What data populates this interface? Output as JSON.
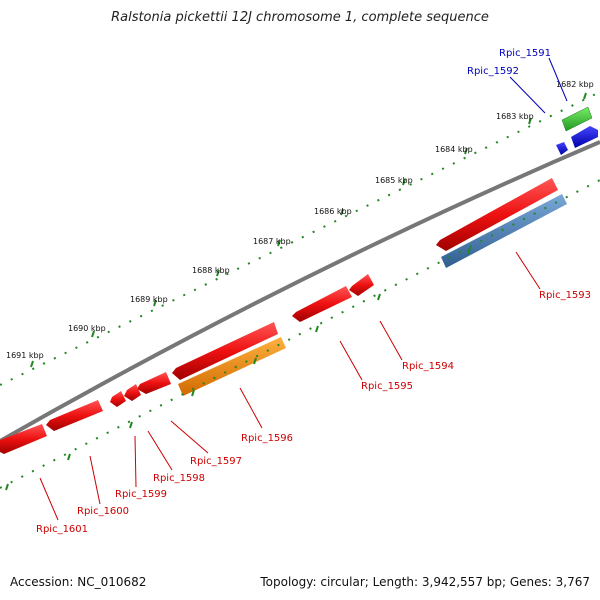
{
  "title": "Ralstonia pickettii 12J chromosome 1, complete sequence",
  "footer": {
    "accession": "Accession: NC_010682",
    "summary": "Topology: circular; Length: 3,942,557 bp; Genes: 3,767"
  },
  "ruler_labels": [
    "1682 kbp",
    "1683 kbp",
    "1684 kbp",
    "1685 kbp",
    "1686 kbp",
    "1687 kbp",
    "1688 kbp",
    "1689 kbp",
    "1690 kbp",
    "1691 kbp"
  ],
  "genes": [
    {
      "name": "Rpic_1591",
      "strand": "forward",
      "color": "#44cc33",
      "label_color": "#0000bb"
    },
    {
      "name": "Rpic_1592",
      "strand": "forward",
      "color": "#0000ee",
      "label_color": "#0000bb"
    },
    {
      "name": "Rpic_1593",
      "strand": "reverse",
      "color": "#ee1111",
      "label_color": "#cc0000"
    },
    {
      "name": "Rpic_1594",
      "strand": "reverse",
      "color": "#ee1111",
      "label_color": "#cc0000"
    },
    {
      "name": "Rpic_1595",
      "strand": "reverse",
      "color": "#ee1111",
      "label_color": "#cc0000"
    },
    {
      "name": "Rpic_1596",
      "strand": "reverse",
      "color": "#ee1111",
      "label_color": "#cc0000"
    },
    {
      "name": "Rpic_1597",
      "strand": "reverse",
      "color": "#ee1111",
      "label_color": "#cc0000"
    },
    {
      "name": "Rpic_1598",
      "strand": "reverse",
      "color": "#ee1111",
      "label_color": "#cc0000"
    },
    {
      "name": "Rpic_1599",
      "strand": "reverse",
      "color": "#ee1111",
      "label_color": "#cc0000"
    },
    {
      "name": "Rpic_1600",
      "strand": "reverse",
      "color": "#ee1111",
      "label_color": "#cc0000"
    },
    {
      "name": "Rpic_1601",
      "strand": "reverse",
      "color": "#ee1111",
      "label_color": "#cc0000"
    }
  ],
  "feature_colors": {
    "backbone": "#777777",
    "ruler_ticks": "#228822",
    "cds_blue": "#4a7fb5",
    "cds_orange": "#ff8800"
  }
}
